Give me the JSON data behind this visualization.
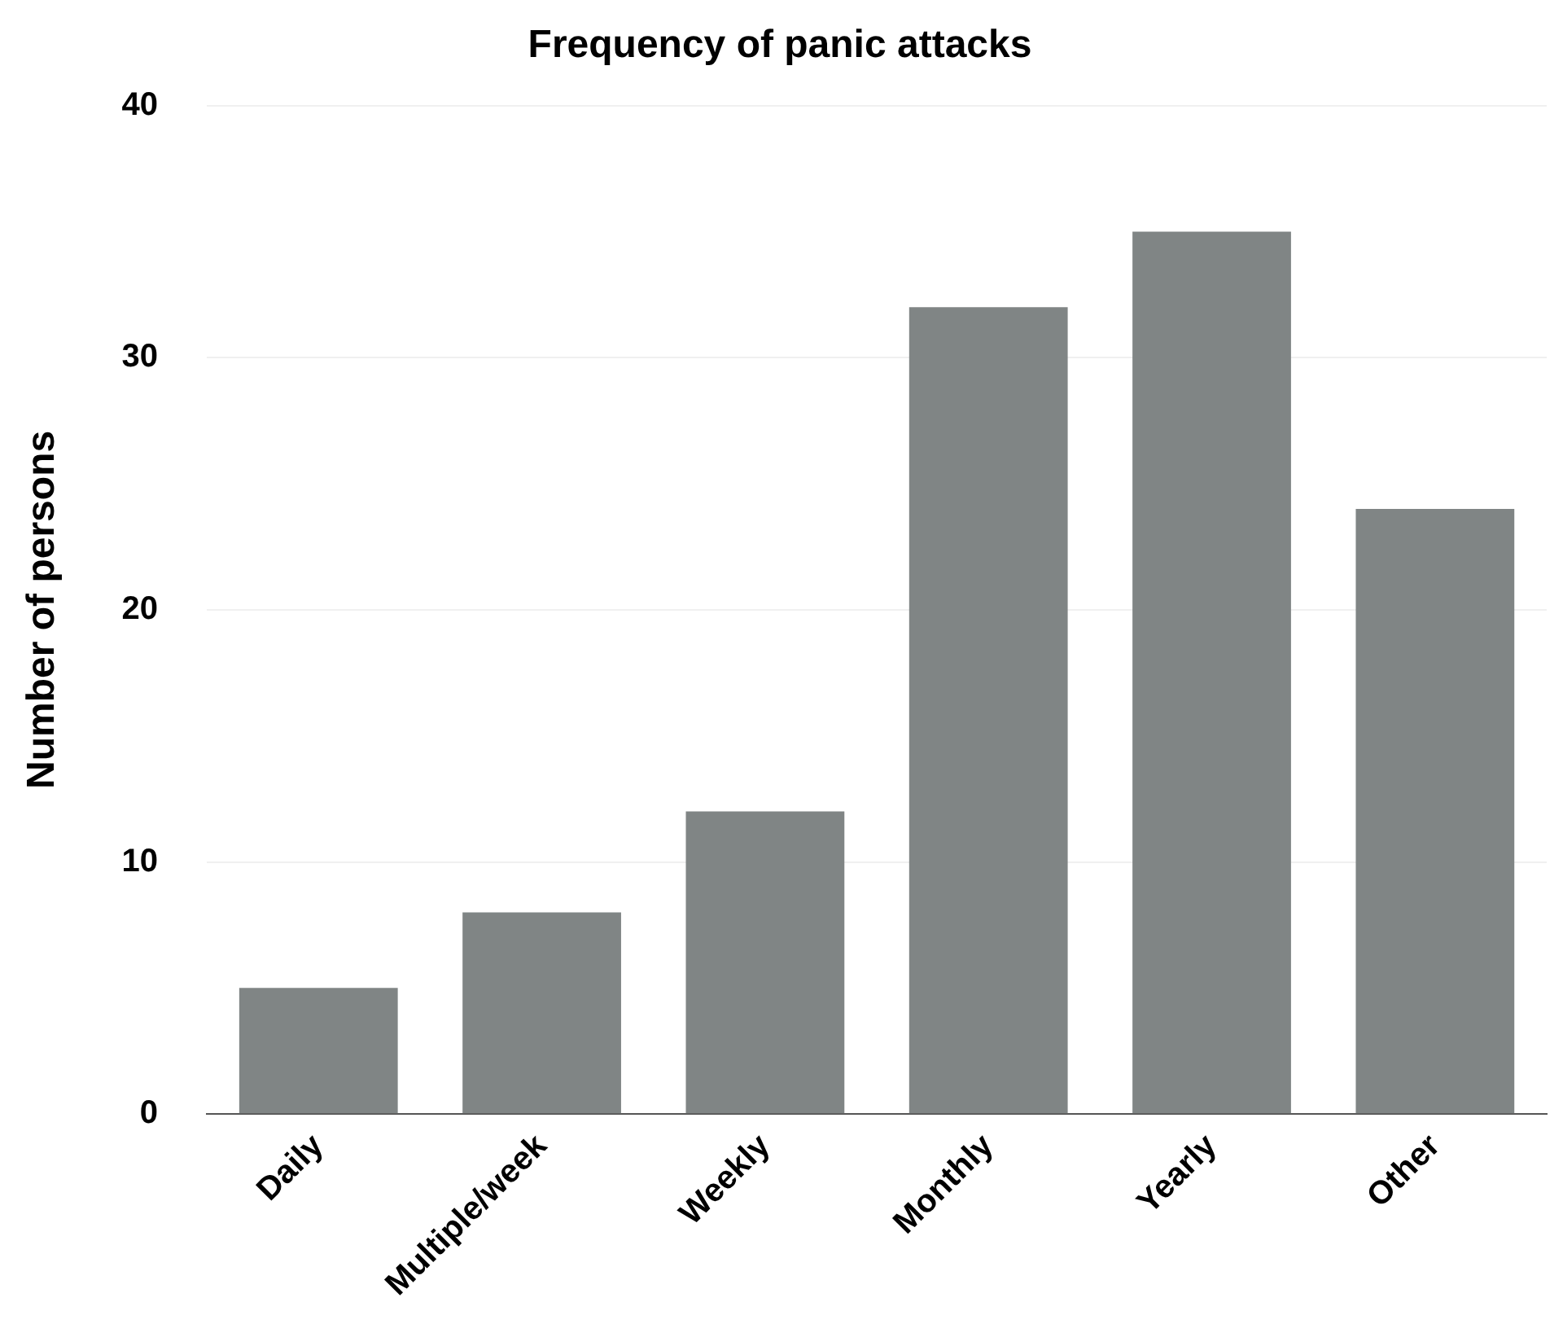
{
  "chart_data": {
    "type": "bar",
    "title": "Frequency of panic attacks",
    "ylabel": "Number of persons",
    "categories": [
      "Daily",
      "Multiple/week",
      "Weekly",
      "Monthly",
      "Yearly",
      "Other"
    ],
    "values": [
      5,
      8,
      12,
      32,
      35,
      24
    ],
    "color": "#808585",
    "ylim": [
      0,
      40
    ],
    "yticks": [
      0,
      10,
      20,
      30,
      40
    ],
    "grid": "y",
    "legend": false
  }
}
